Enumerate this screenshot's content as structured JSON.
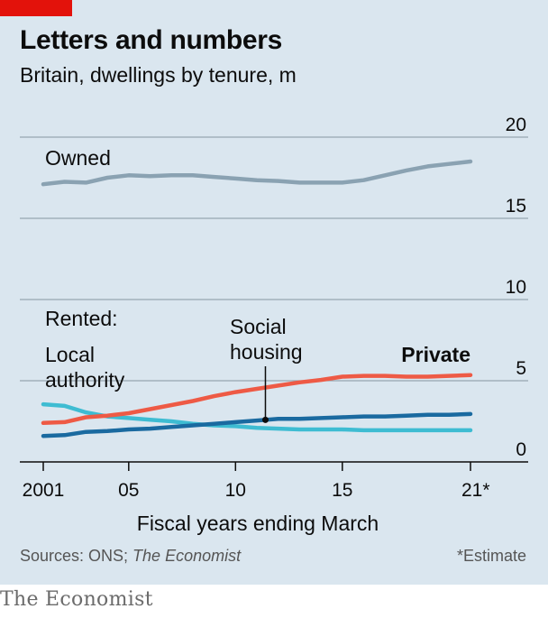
{
  "header": {
    "title": "Letters and numbers",
    "subtitle": "Britain, dwellings by tenure, m"
  },
  "footer": {
    "sources_prefix": "Sources: ONS; ",
    "sources_italic": "The Economist",
    "footnote": "*Estimate",
    "brand": "The Economist"
  },
  "colors": {
    "background": "#dae6ef",
    "accent": "#e3120b",
    "owned": "#8aa2b2",
    "private": "#ee5a45",
    "social": "#1a6aa0",
    "local": "#3ebcd2"
  },
  "chart_data": {
    "type": "line",
    "xlabel": "Fiscal years ending March",
    "ylabel": "",
    "ylim": [
      0,
      20
    ],
    "xlim": [
      2001,
      2021
    ],
    "yticks": [
      0,
      5,
      10,
      15,
      20
    ],
    "ytick_labels": [
      "0",
      "5",
      "10",
      "15",
      "20"
    ],
    "xticks": [
      2001,
      2005,
      2010,
      2015,
      2021
    ],
    "xtick_labels": [
      "2001",
      "05",
      "10",
      "15",
      "21*"
    ],
    "grid": true,
    "legend": "direct labels on lines",
    "group_labels": {
      "owned": "Owned",
      "rented": "Rented:"
    },
    "x": [
      2001,
      2002,
      2003,
      2004,
      2005,
      2006,
      2007,
      2008,
      2009,
      2010,
      2011,
      2012,
      2013,
      2014,
      2015,
      2016,
      2017,
      2018,
      2019,
      2020,
      2021
    ],
    "series": [
      {
        "key": "owned",
        "name": "Owned",
        "values": [
          17.1,
          17.25,
          17.2,
          17.5,
          17.65,
          17.6,
          17.65,
          17.65,
          17.55,
          17.45,
          17.35,
          17.3,
          17.2,
          17.2,
          17.2,
          17.35,
          17.65,
          17.95,
          18.2,
          18.35,
          18.5
        ]
      },
      {
        "key": "private",
        "name": "Private",
        "values": [
          2.4,
          2.45,
          2.75,
          2.85,
          3.0,
          3.25,
          3.5,
          3.75,
          4.05,
          4.3,
          4.5,
          4.7,
          4.9,
          5.05,
          5.25,
          5.3,
          5.3,
          5.25,
          5.25,
          5.3,
          5.35
        ]
      },
      {
        "key": "social",
        "name": "Social housing",
        "values": [
          1.6,
          1.65,
          1.85,
          1.9,
          2.0,
          2.05,
          2.15,
          2.25,
          2.35,
          2.45,
          2.55,
          2.65,
          2.65,
          2.7,
          2.75,
          2.8,
          2.8,
          2.85,
          2.9,
          2.9,
          2.95
        ]
      },
      {
        "key": "local",
        "name": "Local authority",
        "values": [
          3.55,
          3.45,
          3.05,
          2.8,
          2.7,
          2.6,
          2.5,
          2.35,
          2.25,
          2.2,
          2.1,
          2.05,
          2.0,
          2.0,
          2.0,
          1.95,
          1.95,
          1.95,
          1.95,
          1.95,
          1.95
        ]
      }
    ],
    "annotations": {
      "social_label": [
        "Social",
        "housing"
      ],
      "local_label": [
        "Local",
        "authority"
      ],
      "private_label": "Private",
      "social_pointer_year": 2011.4
    }
  }
}
